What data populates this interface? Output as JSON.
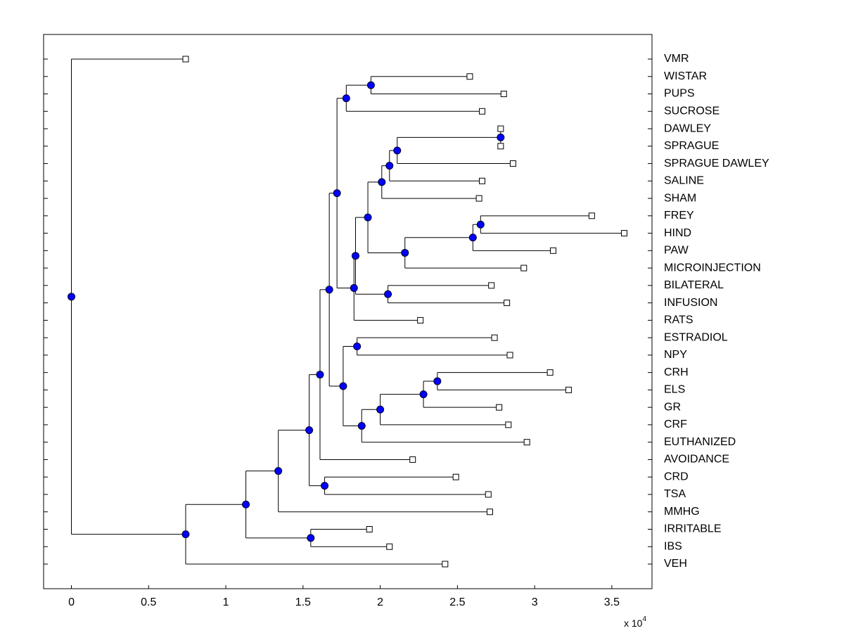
{
  "chart_data": {
    "type": "dendrogram",
    "xlim": [
      -0.18,
      3.76
    ],
    "xticks": [
      0,
      0.5,
      1,
      1.5,
      2,
      2.5,
      3,
      3.5
    ],
    "x_multiplier": {
      "base": "x 10",
      "exponent": "4"
    },
    "node_color": "#0000ff",
    "leaf_color": "#ffffff",
    "tree": {
      "x": 0,
      "children": [
        {
          "label": "VMR",
          "x": 0.74
        },
        {
          "x": 0.74,
          "children": [
            {
              "x": 1.13,
              "children": [
                {
                  "x": 1.34,
                  "children": [
                    {
                      "x": 1.54,
                      "children": [
                        {
                          "x": 1.61,
                          "children": [
                            {
                              "x": 1.67,
                              "children": [
                                {
                                  "x": 1.72,
                                  "children": [
                                    {
                                      "x": 1.78,
                                      "children": [
                                        {
                                          "x": 1.94,
                                          "children": [
                                            {
                                              "label": "WISTAR",
                                              "x": 2.58
                                            },
                                            {
                                              "label": "PUPS",
                                              "x": 2.8
                                            }
                                          ]
                                        },
                                        {
                                          "label": "SUCROSE",
                                          "x": 2.66
                                        }
                                      ]
                                    },
                                    {
                                      "x": 1.83,
                                      "children": [
                                        {
                                          "x": 1.84,
                                          "children": [
                                            {
                                              "x": 1.92,
                                              "children": [
                                                {
                                                  "x": 2.01,
                                                  "children": [
                                                    {
                                                      "x": 2.06,
                                                      "children": [
                                                        {
                                                          "x": 2.11,
                                                          "children": [
                                                            {
                                                              "x": 2.78,
                                                              "children": [
                                                                {
                                                                  "label": "DAWLEY",
                                                                  "x": 2.78
                                                                },
                                                                {
                                                                  "label": "SPRAGUE",
                                                                  "x": 2.78
                                                                }
                                                              ]
                                                            },
                                                            {
                                                              "label": "SPRAGUE DAWLEY",
                                                              "x": 2.86
                                                            }
                                                          ]
                                                        },
                                                        {
                                                          "label": "SALINE",
                                                          "x": 2.66
                                                        }
                                                      ]
                                                    },
                                                    {
                                                      "label": "SHAM",
                                                      "x": 2.64
                                                    }
                                                  ]
                                                },
                                                {
                                                  "x": 2.16,
                                                  "children": [
                                                    {
                                                      "x": 2.6,
                                                      "children": [
                                                        {
                                                          "x": 2.65,
                                                          "children": [
                                                            {
                                                              "label": "FREY",
                                                              "x": 3.37
                                                            },
                                                            {
                                                              "label": "HIND",
                                                              "x": 3.58
                                                            }
                                                          ]
                                                        },
                                                        {
                                                          "label": "PAW",
                                                          "x": 3.12
                                                        }
                                                      ]
                                                    },
                                                    {
                                                      "label": "MICROINJECTION",
                                                      "x": 2.93
                                                    }
                                                  ]
                                                }
                                              ]
                                            },
                                            {
                                              "x": 2.05,
                                              "children": [
                                                {
                                                  "label": "BILATERAL",
                                                  "x": 2.72
                                                },
                                                {
                                                  "label": "INFUSION",
                                                  "x": 2.82
                                                }
                                              ]
                                            }
                                          ]
                                        },
                                        {
                                          "label": "RATS",
                                          "x": 2.26
                                        }
                                      ]
                                    }
                                  ]
                                },
                                {
                                  "x": 1.76,
                                  "children": [
                                    {
                                      "x": 1.85,
                                      "children": [
                                        {
                                          "label": "ESTRADIOL",
                                          "x": 2.74
                                        },
                                        {
                                          "label": "NPY",
                                          "x": 2.84
                                        }
                                      ]
                                    },
                                    {
                                      "x": 1.88,
                                      "children": [
                                        {
                                          "x": 2.0,
                                          "children": [
                                            {
                                              "x": 2.28,
                                              "children": [
                                                {
                                                  "x": 2.37,
                                                  "children": [
                                                    {
                                                      "label": "CRH",
                                                      "x": 3.1
                                                    },
                                                    {
                                                      "label": "ELS",
                                                      "x": 3.22
                                                    }
                                                  ]
                                                },
                                                {
                                                  "label": "GR",
                                                  "x": 2.77
                                                }
                                              ]
                                            },
                                            {
                                              "label": "CRF",
                                              "x": 2.83
                                            }
                                          ]
                                        },
                                        {
                                          "label": "EUTHANIZED",
                                          "x": 2.95
                                        }
                                      ]
                                    }
                                  ]
                                }
                              ]
                            },
                            {
                              "label": "AVOIDANCE",
                              "x": 2.21
                            }
                          ]
                        },
                        {
                          "x": 1.64,
                          "children": [
                            {
                              "label": "CRD",
                              "x": 2.49
                            },
                            {
                              "label": "TSA",
                              "x": 2.7
                            }
                          ]
                        }
                      ]
                    },
                    {
                      "label": "MMHG",
                      "x": 2.71
                    }
                  ]
                },
                {
                  "x": 1.55,
                  "children": [
                    {
                      "label": "IRRITABLE",
                      "x": 1.93
                    },
                    {
                      "label": "IBS",
                      "x": 2.06
                    }
                  ]
                }
              ]
            },
            {
              "label": "VEH",
              "x": 2.42
            }
          ]
        }
      ]
    }
  }
}
